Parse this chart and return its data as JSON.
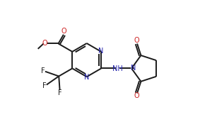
{
  "bg_color": "#ffffff",
  "bond_color": "#1a1a1a",
  "N_color": "#2020aa",
  "O_color": "#cc2020",
  "F_color": "#1a1a1a",
  "line_width": 1.4,
  "font_size": 7.0,
  "figsize": [
    2.83,
    1.72
  ],
  "dpi": 100,
  "xlim": [
    0,
    10.5
  ],
  "ylim": [
    0,
    6.0
  ]
}
